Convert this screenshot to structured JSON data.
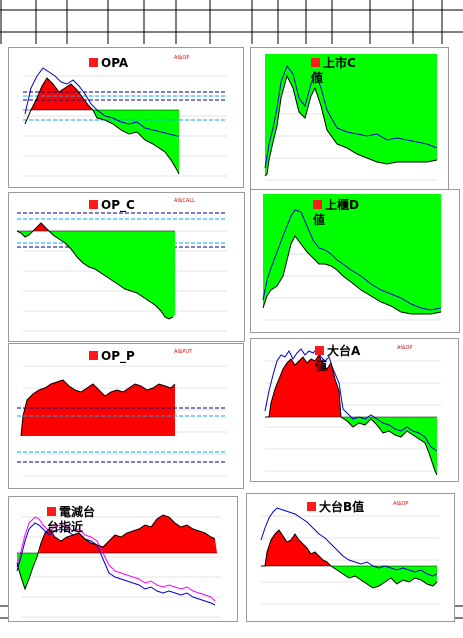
{
  "panels": [
    {
      "id": "opa",
      "title": "OPA",
      "subtitle": "A仙OP"
    },
    {
      "id": "listed_c",
      "title": "上市C\n値"
    },
    {
      "id": "op_c",
      "title": "OP_C",
      "subtitle": "A仙CALL"
    },
    {
      "id": "otc_d",
      "title": "上櫃D\n値"
    },
    {
      "id": "op_p",
      "title": "OP_P",
      "subtitle": "A仙PUT"
    },
    {
      "id": "taiex_a",
      "title": "大台A\n値",
      "subtitle": "A仙OP"
    },
    {
      "id": "elec",
      "title": "電減台\n台指近"
    },
    {
      "id": "taiex_b",
      "title": "大台B值",
      "subtitle": "A仙OP"
    }
  ],
  "colors": {
    "gain_fill": "#ff0000",
    "loss_fill": "#00ff00",
    "line_blue": "#0000cc",
    "line_black": "#000000",
    "line_magenta": "#ff00ff",
    "dashed_navy": "#000080",
    "dashed_cyan": "#00aaee",
    "frame": "#9a9a9a"
  },
  "icons": [
    "red-square-marker-icon"
  ]
}
